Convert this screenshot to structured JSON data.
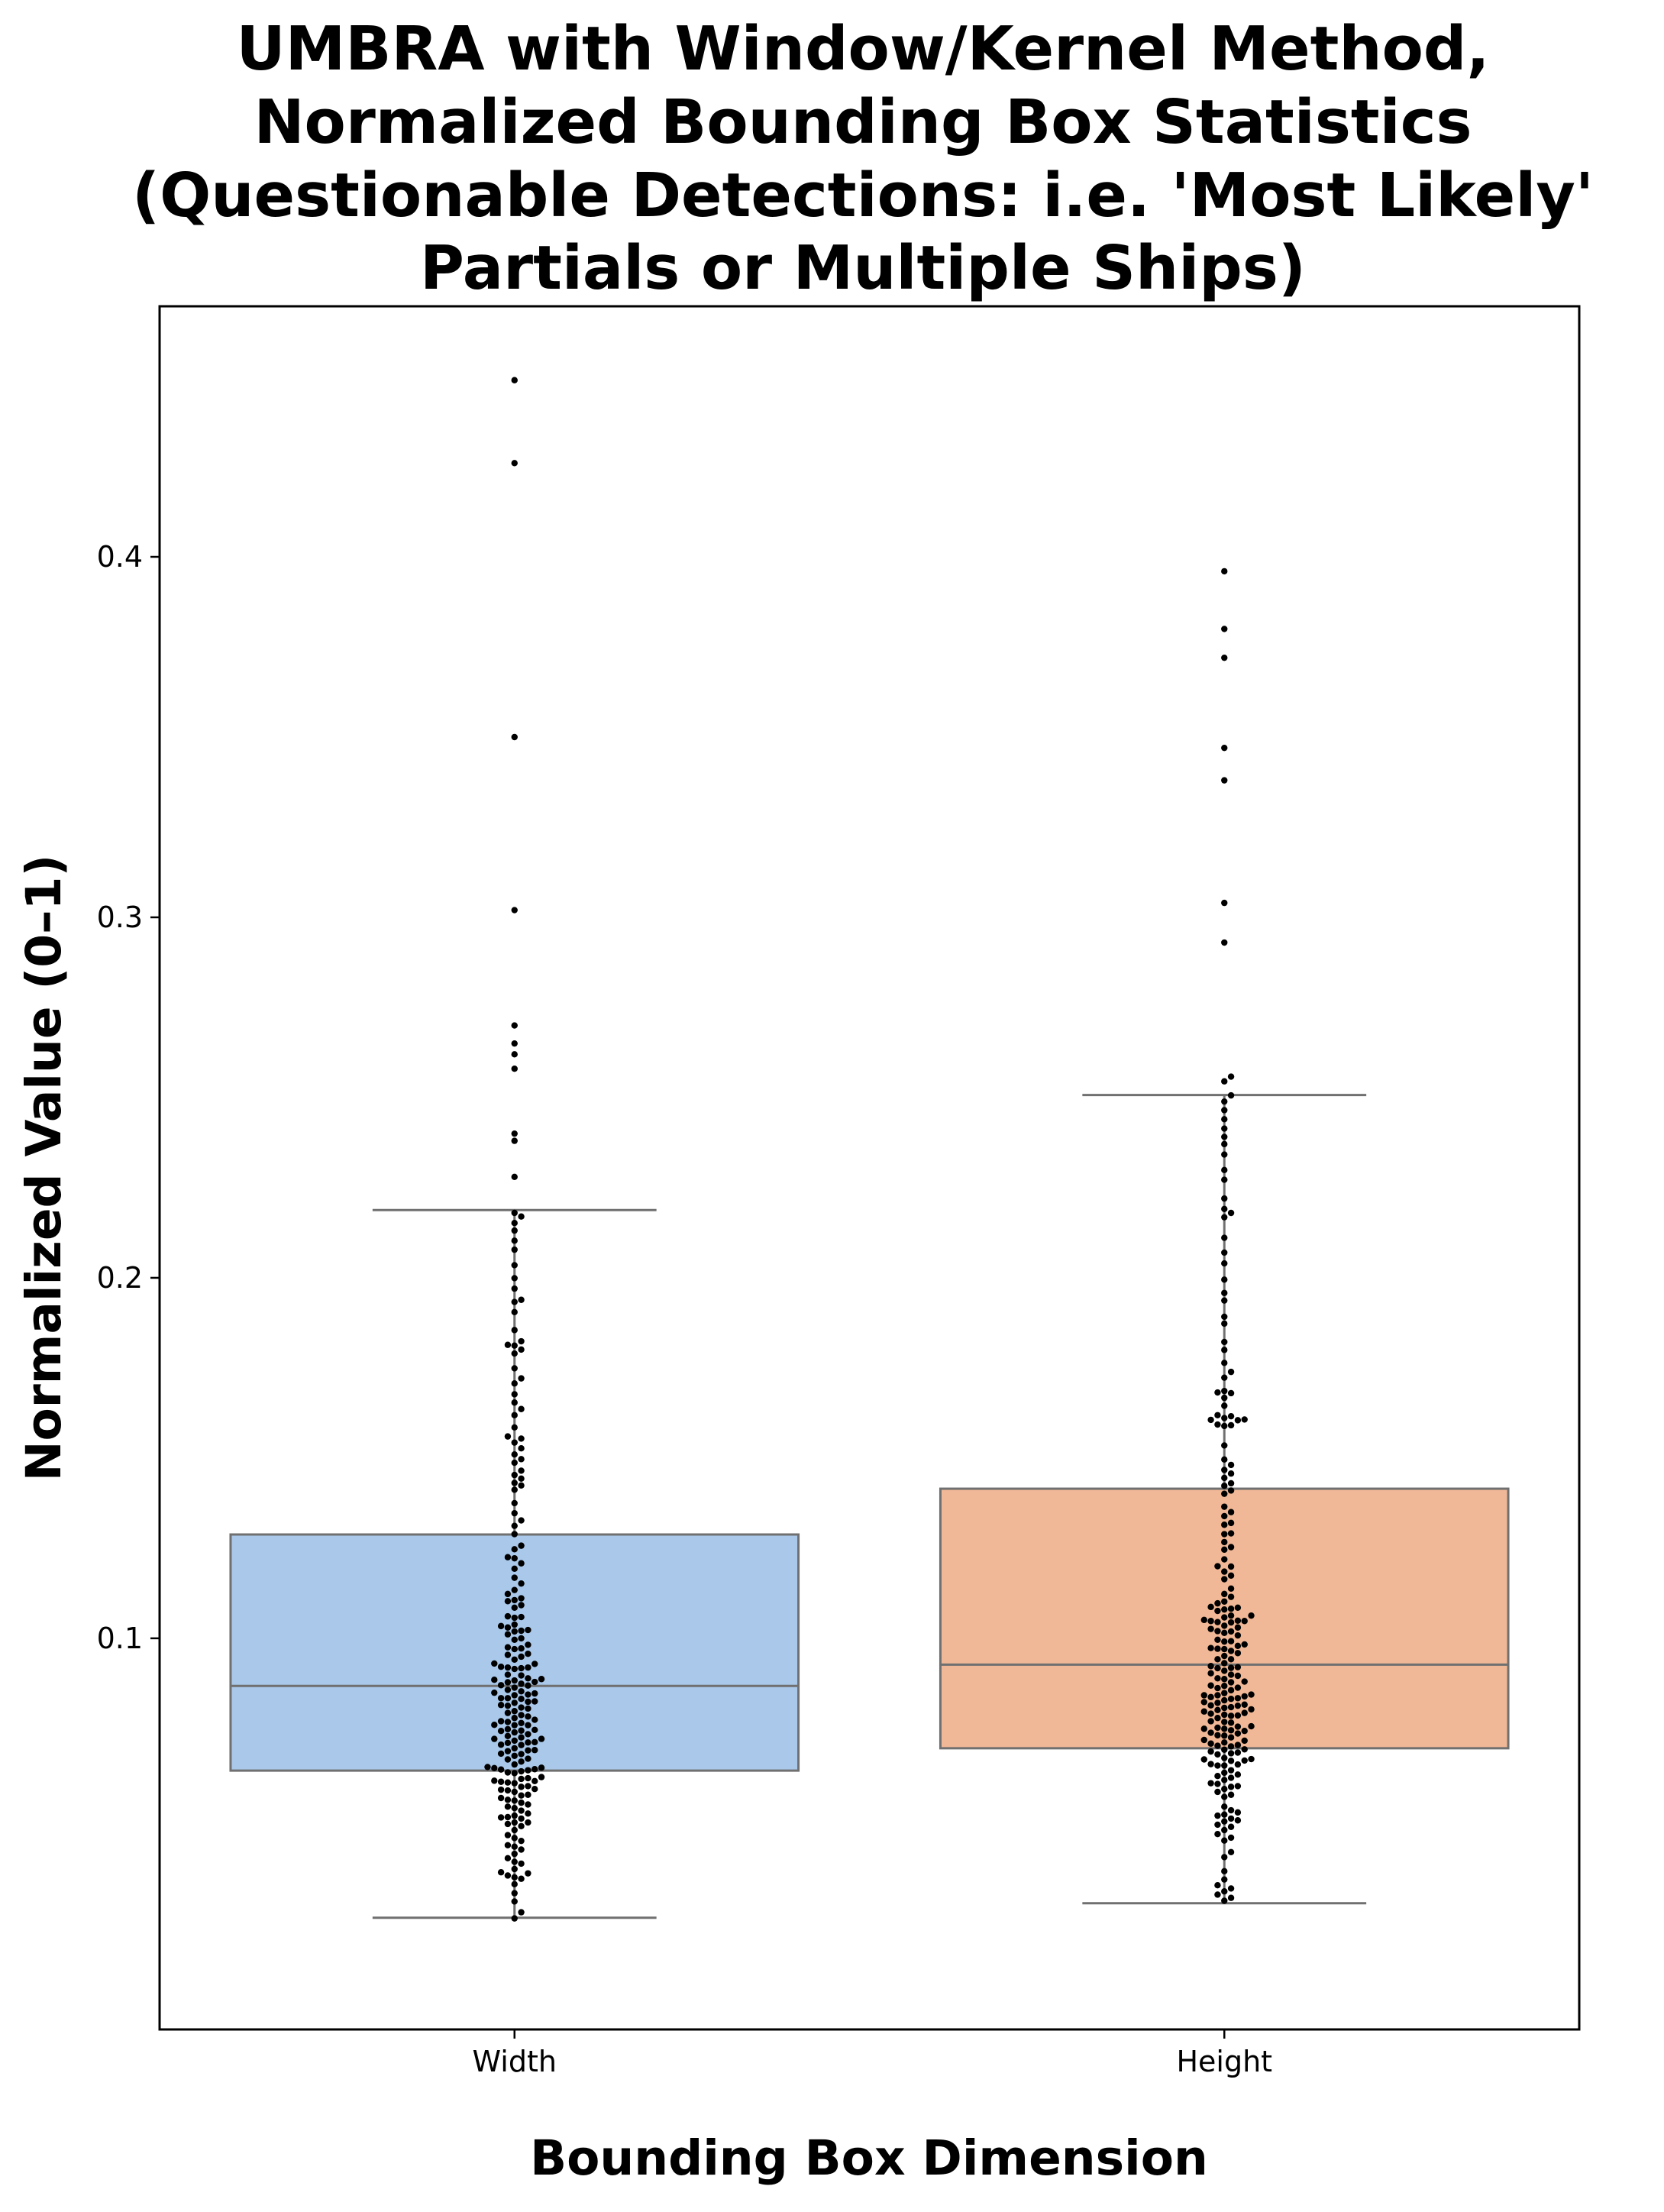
{
  "chart_data": {
    "type": "box",
    "title": [
      "UMBRA with Window/Kernel Method,",
      "Normalized Bounding Box Statistics",
      "(Questionable Detections: i.e. 'Most Likely'",
      "Partials or Multiple Ships)"
    ],
    "xlabel": "Bounding Box Dimension",
    "ylabel": "Normalized Value (0–1)",
    "ylim": [
      -0.0085,
      0.4695
    ],
    "yticks": [
      0.1,
      0.2,
      0.3,
      0.4
    ],
    "ytick_labels": [
      "0.1",
      "0.2",
      "0.3",
      "0.4"
    ],
    "categories": [
      "Width",
      "Height"
    ],
    "grid": false,
    "legend": "none",
    "box_edge_color": "#707070",
    "point_color": "#000000",
    "series": [
      {
        "category": "Width",
        "color": "#a9c8ea",
        "whisker_low": 0.0225,
        "q1": 0.0633,
        "median": 0.0868,
        "q3": 0.1288,
        "whisker_high": 0.2188,
        "points": [
          0.449,
          0.426,
          0.35,
          0.302,
          0.27,
          0.265,
          0.262,
          0.258,
          0.24,
          0.238,
          0.228,
          0.218,
          0.217,
          0.2152,
          0.2131,
          0.2103,
          0.2078,
          0.2035,
          0.1999,
          0.197,
          0.1939,
          0.1933,
          0.1905,
          0.1855,
          0.1824,
          0.1814,
          0.1812,
          0.1801,
          0.179,
          0.1749,
          0.1721,
          0.1707,
          0.1677,
          0.1654,
          0.1636,
          0.1619,
          0.1585,
          0.156,
          0.1554,
          0.1543,
          0.1527,
          0.151,
          0.1497,
          0.1487,
          0.1465,
          0.1453,
          0.1443,
          0.1431,
          0.1424,
          0.1412,
          0.1375,
          0.1347,
          0.1327,
          0.1312,
          0.1289,
          0.1257,
          0.1247,
          0.1225,
          0.1222,
          0.1208,
          0.1193,
          0.1168,
          0.1152,
          0.1134,
          0.1123,
          0.1111,
          0.1106,
          0.1103,
          0.1092,
          0.1085,
          0.1061,
          0.1059,
          0.1057,
          0.1038,
          0.1034,
          0.103,
          0.1023,
          0.1021,
          0.1019,
          0.1011,
          0.1,
          0.0996,
          0.0982,
          0.0975,
          0.0972,
          0.097,
          0.0957,
          0.0954,
          0.0949,
          0.0941,
          0.093,
          0.0929,
          0.0921,
          0.0919,
          0.0919,
          0.0917,
          0.0915,
          0.0899,
          0.0897,
          0.0889,
          0.0887,
          0.0885,
          0.0883,
          0.0879,
          0.0878,
          0.0874,
          0.087,
          0.0869,
          0.0863,
          0.0857,
          0.0853,
          0.0849,
          0.0847,
          0.0844,
          0.0842,
          0.0834,
          0.0834,
          0.0832,
          0.0825,
          0.0824,
          0.0821,
          0.0815,
          0.0813,
          0.0808,
          0.0805,
          0.0798,
          0.0793,
          0.0787,
          0.0783,
          0.0779,
          0.0774,
          0.077,
          0.0768,
          0.0765,
          0.076,
          0.0759,
          0.0759,
          0.0748,
          0.0746,
          0.0744,
          0.0743,
          0.0739,
          0.0734,
          0.0729,
          0.0725,
          0.0721,
          0.0721,
          0.0716,
          0.0712,
          0.0711,
          0.071,
          0.0705,
          0.0704,
          0.0695,
          0.069,
          0.0689,
          0.0687,
          0.068,
          0.0679,
          0.0674,
          0.0666,
          0.0664,
          0.0658,
          0.065,
          0.0643,
          0.0641,
          0.064,
          0.0637,
          0.0636,
          0.0634,
          0.0631,
          0.0628,
          0.0626,
          0.0615,
          0.0612,
          0.061,
          0.0605,
          0.0604,
          0.0602,
          0.06,
          0.0598,
          0.059,
          0.0588,
          0.0582,
          0.058,
          0.0578,
          0.0574,
          0.0566,
          0.0564,
          0.0557,
          0.0552,
          0.055,
          0.0544,
          0.0539,
          0.0533,
          0.0529,
          0.0522,
          0.0514,
          0.0508,
          0.0504,
          0.0503,
          0.05,
          0.0489,
          0.0489,
          0.0485,
          0.0479,
          0.0468,
          0.0454,
          0.0446,
          0.0438,
          0.0426,
          0.0422,
          0.0414,
          0.0402,
          0.039,
          0.038,
          0.0375,
          0.036,
          0.0351,
          0.0348,
          0.0342,
          0.0337,
          0.0333,
          0.0318,
          0.0293,
          0.027,
          0.024,
          0.0223
        ]
      },
      {
        "category": "Height",
        "color": "#f0b896",
        "whisker_low": 0.0265,
        "q1": 0.0695,
        "median": 0.0927,
        "q3": 0.1415,
        "whisker_high": 0.2507,
        "points": [
          0.396,
          0.38,
          0.372,
          0.347,
          0.338,
          0.304,
          0.293,
          0.2558,
          0.2545,
          0.2506,
          0.2489,
          0.2465,
          0.244,
          0.2414,
          0.2391,
          0.2371,
          0.2342,
          0.2299,
          0.2272,
          0.222,
          0.2191,
          0.218,
          0.2168,
          0.2111,
          0.207,
          0.204,
          0.1995,
          0.1958,
          0.1937,
          0.1892,
          0.1873,
          0.1822,
          0.18,
          0.1764,
          0.1739,
          0.1723,
          0.1686,
          0.1682,
          0.168,
          0.1667,
          0.1645,
          0.1619,
          0.1616,
          0.1611,
          0.1607,
          0.1606,
          0.1605,
          0.1593,
          0.1591,
          0.1589,
          0.1535,
          0.1496,
          0.1481,
          0.1467,
          0.1457,
          0.1445,
          0.143,
          0.1423,
          0.141,
          0.1401,
          0.1365,
          0.135,
          0.1339,
          0.132,
          0.1315,
          0.1291,
          0.1289,
          0.1267,
          0.1253,
          0.1246,
          0.1219,
          0.12,
          0.1199,
          0.1185,
          0.1174,
          0.1164,
          0.1138,
          0.1123,
          0.1115,
          0.1102,
          0.1097,
          0.1087,
          0.1085,
          0.1082,
          0.108,
          0.1076,
          0.1063,
          0.1063,
          0.1058,
          0.1051,
          0.1049,
          0.1048,
          0.1048,
          0.1045,
          0.1044,
          0.1035,
          0.103,
          0.1026,
          0.102,
          0.1019,
          0.1015,
          0.1008,
          0.0996,
          0.0992,
          0.0991,
          0.0983,
          0.0979,
          0.0973,
          0.0971,
          0.097,
          0.0965,
          0.0959,
          0.0951,
          0.0942,
          0.0942,
          0.0931,
          0.0923,
          0.092,
          0.0918,
          0.0917,
          0.091,
          0.0903,
          0.0899,
          0.0896,
          0.0889,
          0.0887,
          0.088,
          0.0878,
          0.0869,
          0.0868,
          0.0863,
          0.0862,
          0.0856,
          0.0848,
          0.0844,
          0.0842,
          0.0842,
          0.0839,
          0.0837,
          0.0834,
          0.0832,
          0.0828,
          0.0823,
          0.0821,
          0.0816,
          0.0814,
          0.0813,
          0.0809,
          0.0807,
          0.0803,
          0.0801,
          0.0797,
          0.0793,
          0.0791,
          0.0788,
          0.0786,
          0.0785,
          0.0779,
          0.077,
          0.0768,
          0.0766,
          0.0756,
          0.0755,
          0.0752,
          0.0749,
          0.0749,
          0.0745,
          0.0743,
          0.0738,
          0.0736,
          0.0731,
          0.073,
          0.0725,
          0.0718,
          0.0716,
          0.0711,
          0.0708,
          0.0704,
          0.0702,
          0.07,
          0.0692,
          0.0691,
          0.0686,
          0.0683,
          0.0681,
          0.0678,
          0.0668,
          0.0665,
          0.0664,
          0.0661,
          0.066,
          0.0651,
          0.065,
          0.0647,
          0.0647,
          0.0634,
          0.0627,
          0.0622,
          0.0618,
          0.0613,
          0.0607,
          0.0598,
          0.0596,
          0.059,
          0.0588,
          0.0582,
          0.0574,
          0.0566,
          0.056,
          0.0533,
          0.0523,
          0.0517,
          0.0511,
          0.0508,
          0.05,
          0.0495,
          0.0492,
          0.0483,
          0.0477,
          0.0468,
          0.0457,
          0.0447,
          0.0439,
          0.0407,
          0.0393,
          0.0354,
          0.0331,
          0.0315,
          0.0306,
          0.0298,
          0.0289,
          0.028,
          0.0272
        ]
      }
    ]
  }
}
